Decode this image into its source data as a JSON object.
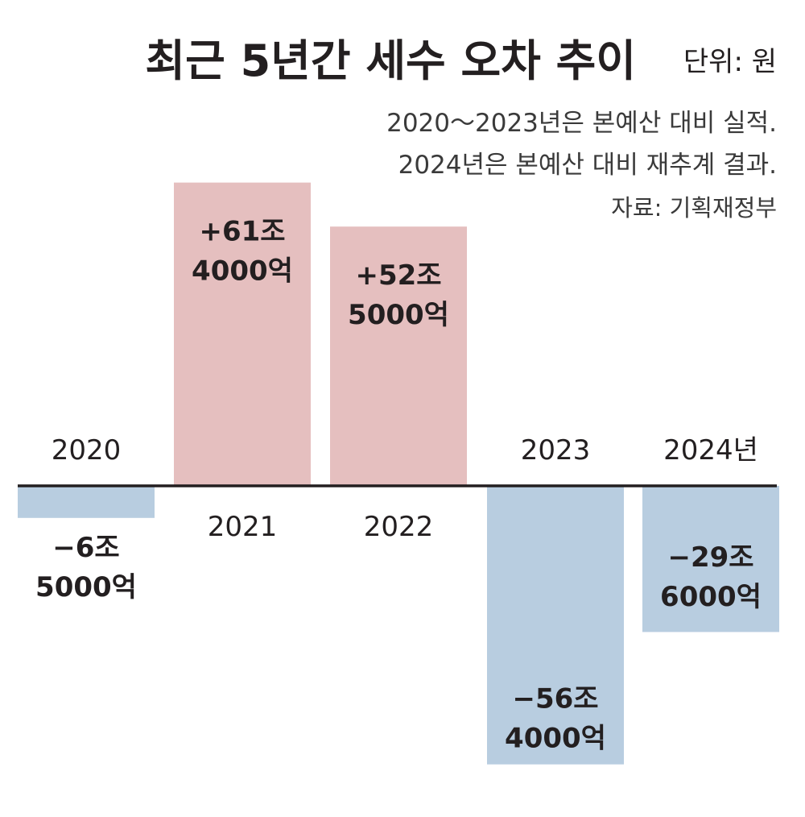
{
  "chart_data": {
    "type": "bar",
    "title": "최근 5년간 세수 오차 추이",
    "unit": "단위: 원",
    "notes": [
      "2020～2023년은 본예산 대비 실적.",
      "2024년은 본예산 대비 재추계 결과."
    ],
    "source": "자료: 기획재정부",
    "categories": [
      "2020",
      "2021",
      "2022",
      "2023",
      "2024년"
    ],
    "values": [
      -6.5,
      61.4,
      52.5,
      -56.4,
      -29.6
    ],
    "value_label_lines": [
      [
        "−6조",
        "5000억"
      ],
      [
        "+61조",
        "4000억"
      ],
      [
        "+52조",
        "5000억"
      ],
      [
        "−56조",
        "4000억"
      ],
      [
        "−29조",
        "6000억"
      ]
    ],
    "value_unit": "조원",
    "ylim": [
      -60,
      65
    ],
    "grid": false,
    "legend": "none",
    "colors": {
      "positive": "#e5bfbf",
      "negative": "#b8cde0",
      "axis": "#231f20",
      "text": "#231f20",
      "note_text": "#3a3a3a"
    }
  }
}
